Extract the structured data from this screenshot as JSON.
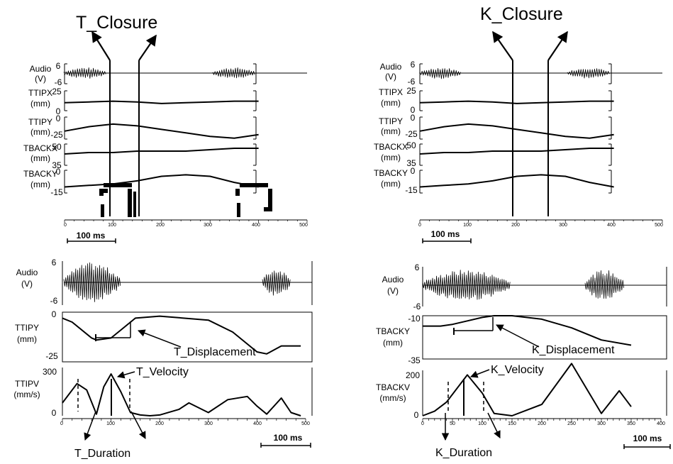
{
  "headings": {
    "t_closure": "T_Closure",
    "k_closure": "K_Closure"
  },
  "top_left": {
    "xticks": [
      "0",
      "100",
      "200",
      "300",
      "400",
      "500"
    ],
    "scalebar": "100 ms",
    "rows": [
      {
        "name": "Audio",
        "unit": "(V)",
        "ticks": [
          "6",
          "-6"
        ]
      },
      {
        "name": "TTIPX",
        "unit": "(mm)",
        "ticks": [
          "25",
          "0"
        ]
      },
      {
        "name": "TTIPY",
        "unit": "(mm)",
        "ticks": [
          "0",
          "-25"
        ]
      },
      {
        "name": "TBACKX",
        "unit": "(mm)",
        "ticks": [
          "50",
          "35"
        ]
      },
      {
        "name": "TBACKY",
        "unit": "(mm)",
        "ticks": [
          "0",
          "-15"
        ]
      }
    ]
  },
  "top_right": {
    "xticks": [
      "0",
      "100",
      "200",
      "300",
      "400",
      "500"
    ],
    "scalebar": "100 ms",
    "rows": [
      {
        "name": "Audio",
        "unit": "(V)",
        "ticks": [
          "6",
          "-6"
        ]
      },
      {
        "name": "TTIPX",
        "unit": "(mm)",
        "ticks": [
          "25",
          "0"
        ]
      },
      {
        "name": "TTIPY",
        "unit": "(mm)",
        "ticks": [
          "0",
          "-25"
        ]
      },
      {
        "name": "TBACKX",
        "unit": "(mm)",
        "ticks": [
          "50",
          "35"
        ]
      },
      {
        "name": "TBACKY",
        "unit": "(mm)",
        "ticks": [
          "0",
          "-15"
        ]
      }
    ]
  },
  "bottom_left": {
    "xticks": [
      "0",
      "100",
      "200",
      "300",
      "400",
      "500"
    ],
    "scalebar": "100 ms",
    "audio": {
      "name": "Audio",
      "unit": "(V)",
      "ticks": [
        "6",
        "-6"
      ]
    },
    "pos": {
      "name": "TTIPY",
      "unit": "(mm)",
      "ticks": [
        "0",
        "-25"
      ]
    },
    "vel": {
      "name": "TTIPV",
      "unit": "(mm/s)",
      "ticks": [
        "300",
        "0"
      ]
    },
    "annotations": {
      "displacement": "T_Displacement",
      "velocity": "T_Velocity",
      "duration": "T_Duration"
    }
  },
  "bottom_right": {
    "xticks": [
      "0",
      "50",
      "100",
      "150",
      "200",
      "250",
      "300",
      "350",
      "400"
    ],
    "scalebar": "100 ms",
    "audio": {
      "name": "Audio",
      "unit": "(V)",
      "ticks": [
        "6",
        "-6"
      ]
    },
    "pos": {
      "name": "TBACKY",
      "unit": "(mm)",
      "ticks": [
        "-10",
        "-35"
      ]
    },
    "vel": {
      "name": "TBACKV",
      "unit": "(mm/s)",
      "ticks": [
        "200",
        "0"
      ]
    },
    "annotations": {
      "displacement": "K_Displacement",
      "velocity": "K_Velocity",
      "duration": "K_Duration"
    }
  },
  "chart_data": [
    {
      "type": "line",
      "panel": "top-left",
      "x_unit": "ms",
      "xlim": [
        0,
        500
      ],
      "closure_markers_x": [
        95,
        155
      ],
      "series": [
        {
          "name": "TTIPX",
          "ylim": [
            0,
            25
          ],
          "x": [
            0,
            50,
            100,
            150,
            200,
            250,
            300,
            350,
            400
          ],
          "values": [
            10,
            11,
            12,
            11,
            9,
            10,
            11,
            12,
            12
          ]
        },
        {
          "name": "TTIPY",
          "ylim": [
            -25,
            0
          ],
          "x": [
            0,
            50,
            100,
            150,
            200,
            250,
            300,
            350,
            400
          ],
          "values": [
            -16,
            -11,
            -8,
            -10,
            -14,
            -18,
            -22,
            -24,
            -20
          ]
        },
        {
          "name": "TBACKX",
          "ylim": [
            35,
            50
          ],
          "x": [
            0,
            50,
            100,
            150,
            200,
            250,
            300,
            350,
            400
          ],
          "values": [
            43,
            44,
            44,
            45,
            45,
            45,
            46,
            47,
            47
          ]
        },
        {
          "name": "TBACKY",
          "ylim": [
            -15,
            0
          ],
          "x": [
            0,
            50,
            100,
            150,
            200,
            250,
            300,
            350,
            400
          ],
          "values": [
            -11,
            -10,
            -9,
            -7,
            -4,
            -3,
            -4,
            -8,
            -11
          ]
        }
      ]
    },
    {
      "type": "line",
      "panel": "top-right",
      "x_unit": "ms",
      "xlim": [
        0,
        500
      ],
      "closure_markers_x": [
        200,
        270
      ],
      "series": [
        {
          "name": "TTIPX",
          "ylim": [
            0,
            25
          ],
          "x": [
            0,
            50,
            100,
            150,
            200,
            250,
            300,
            350,
            400
          ],
          "values": [
            10,
            11,
            12,
            11,
            9,
            10,
            11,
            12,
            12
          ]
        },
        {
          "name": "TTIPY",
          "ylim": [
            -25,
            0
          ],
          "x": [
            0,
            50,
            100,
            150,
            200,
            250,
            300,
            350,
            400
          ],
          "values": [
            -16,
            -11,
            -8,
            -10,
            -14,
            -18,
            -22,
            -24,
            -20
          ]
        },
        {
          "name": "TBACKX",
          "ylim": [
            35,
            50
          ],
          "x": [
            0,
            50,
            100,
            150,
            200,
            250,
            300,
            350,
            400
          ],
          "values": [
            43,
            44,
            44,
            45,
            45,
            45,
            46,
            47,
            47
          ]
        },
        {
          "name": "TBACKY",
          "ylim": [
            -15,
            0
          ],
          "x": [
            0,
            50,
            100,
            150,
            200,
            250,
            300,
            350,
            400
          ],
          "values": [
            -11,
            -10,
            -9,
            -7,
            -4,
            -3,
            -4,
            -8,
            -11
          ]
        }
      ]
    },
    {
      "type": "line",
      "panel": "bottom-left",
      "x_unit": "ms",
      "xlim": [
        0,
        500
      ],
      "series": [
        {
          "name": "TTIPY",
          "ylim": [
            -25,
            0
          ],
          "x": [
            0,
            20,
            60,
            70,
            100,
            125,
            150,
            200,
            300,
            350,
            400,
            420,
            450,
            490
          ],
          "values": [
            -3,
            -5,
            -13,
            -14,
            -13,
            -8,
            -3,
            -2,
            -4,
            -10,
            -20,
            -21,
            -17,
            -17
          ]
        },
        {
          "name": "TTIPV",
          "ylim": [
            0,
            300
          ],
          "x": [
            0,
            30,
            50,
            70,
            85,
            100,
            120,
            140,
            160,
            180,
            200,
            240,
            260,
            300,
            340,
            380,
            400,
            420,
            450,
            470,
            490
          ],
          "values": [
            80,
            200,
            160,
            10,
            180,
            260,
            150,
            20,
            5,
            0,
            5,
            40,
            80,
            20,
            100,
            120,
            60,
            10,
            110,
            20,
            0
          ]
        }
      ]
    },
    {
      "type": "line",
      "panel": "bottom-right",
      "x_unit": "ms",
      "xlim": [
        0,
        400
      ],
      "series": [
        {
          "name": "TBACKY",
          "ylim": [
            -35,
            -10
          ],
          "x": [
            0,
            30,
            50,
            75,
            100,
            120,
            150,
            200,
            250,
            300,
            350
          ],
          "values": [
            -16,
            -16,
            -15,
            -13,
            -11,
            -10,
            -10,
            -12,
            -17,
            -24,
            -27
          ]
        },
        {
          "name": "TBACKV",
          "ylim": [
            0,
            200
          ],
          "x": [
            0,
            20,
            40,
            75,
            100,
            120,
            150,
            200,
            250,
            275,
            300,
            330,
            350
          ],
          "values": [
            0,
            20,
            60,
            180,
            100,
            10,
            0,
            50,
            230,
            120,
            10,
            110,
            40
          ]
        }
      ]
    }
  ]
}
